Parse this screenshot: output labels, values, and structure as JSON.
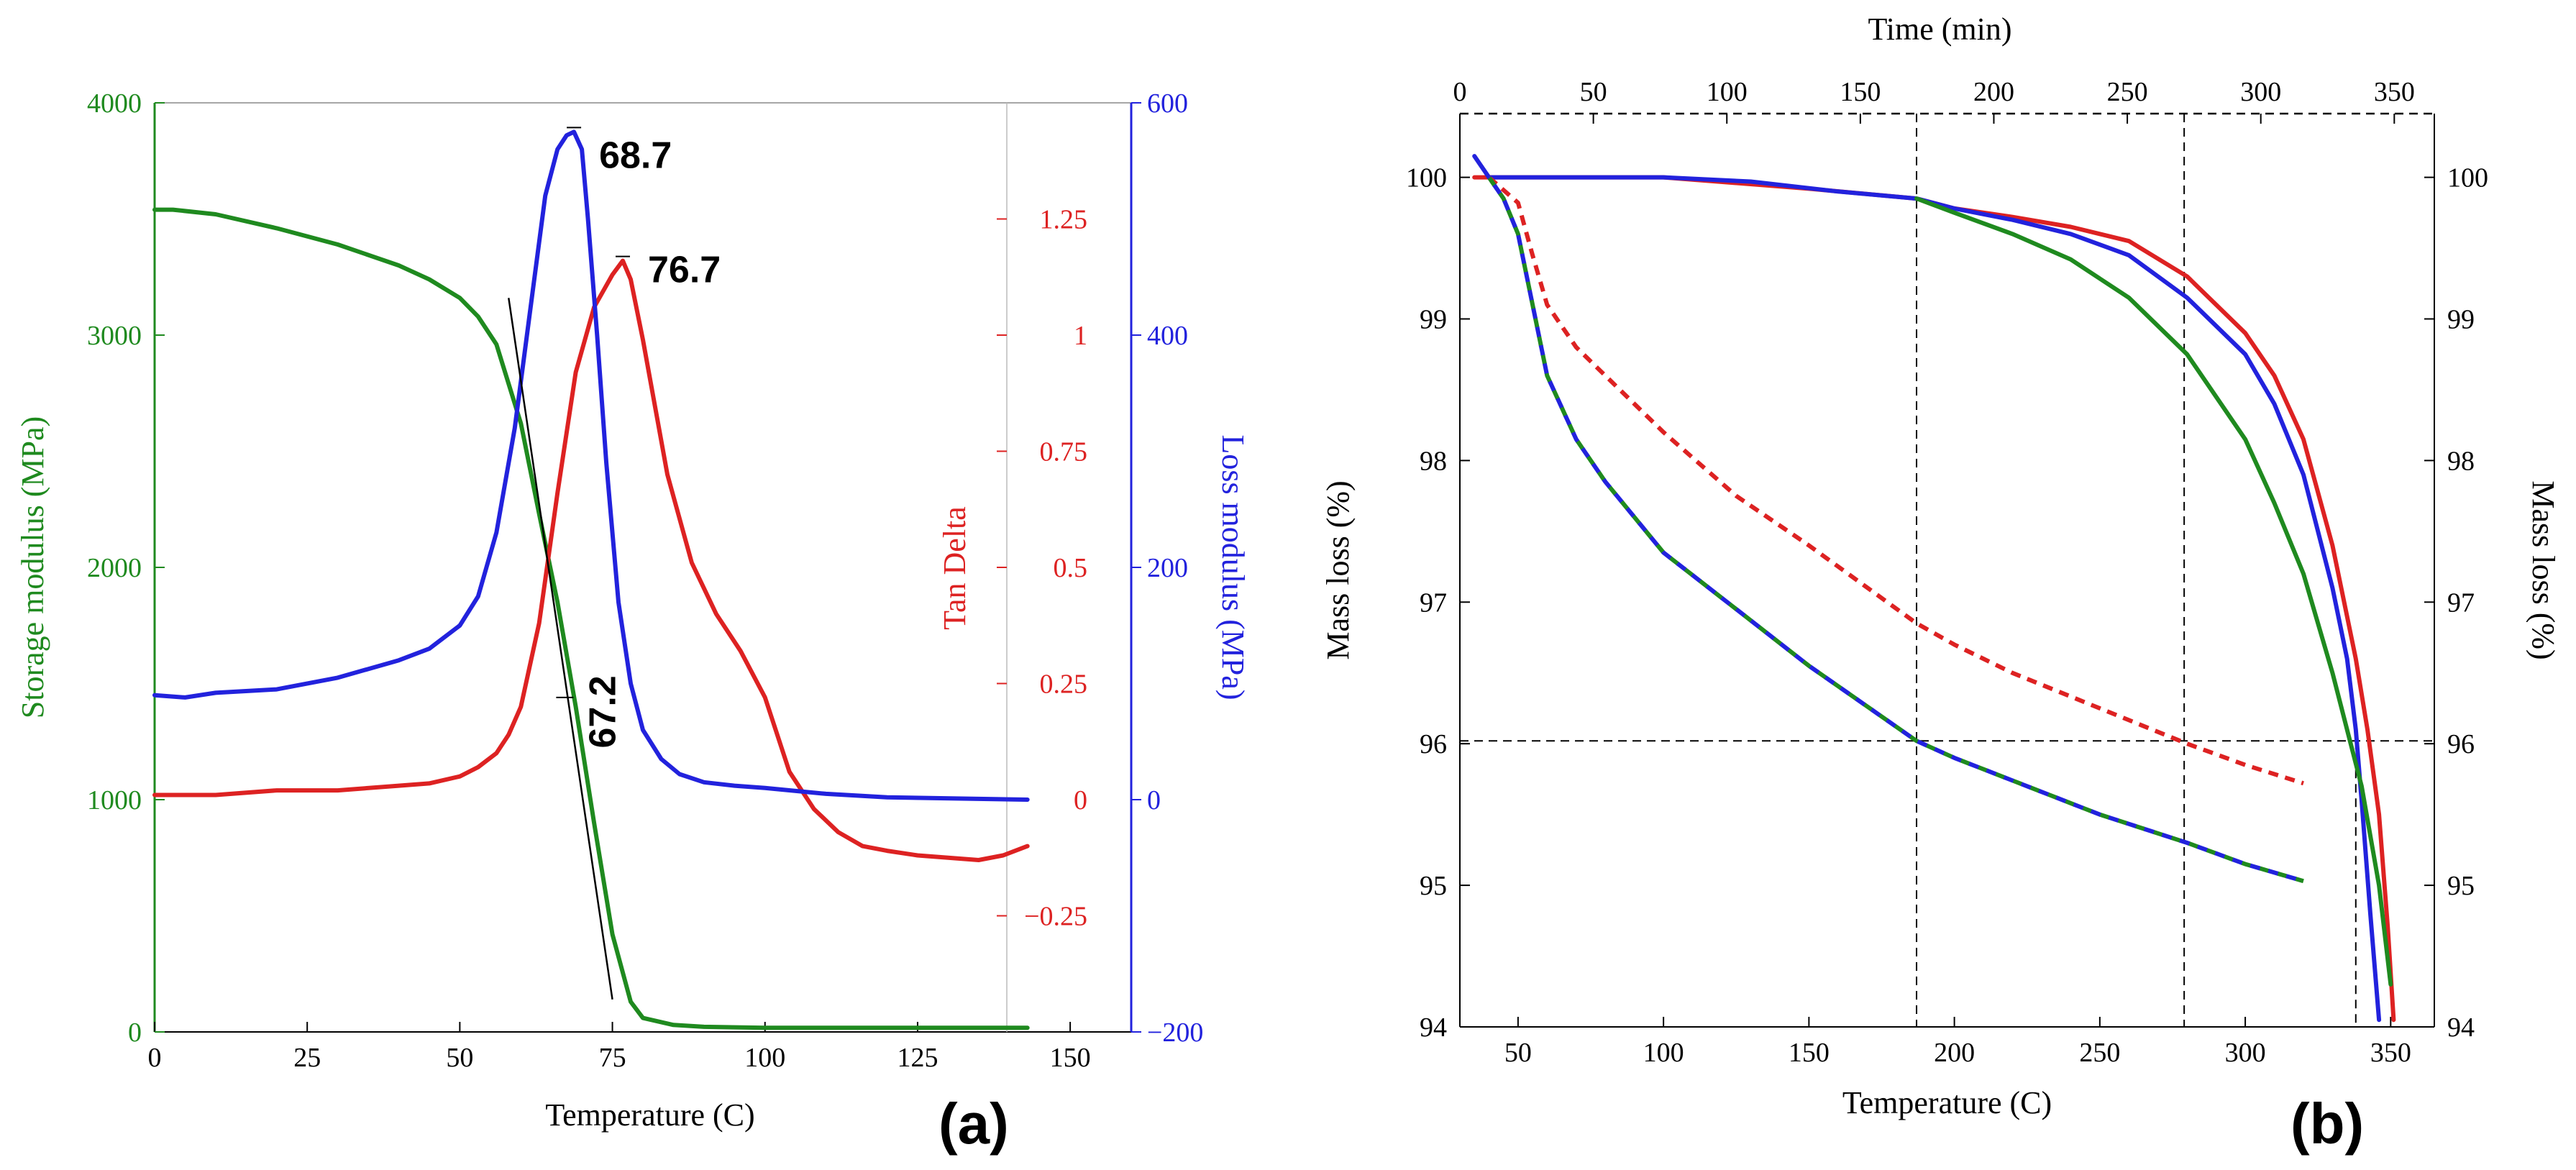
{
  "chart_data": [
    {
      "type": "line",
      "panel_label": "(a)",
      "xlabel": "Temperature (C)",
      "xlim": [
        0,
        160
      ],
      "xticks": [
        0,
        25,
        50,
        75,
        100,
        125,
        150
      ],
      "axes": {
        "storage": {
          "label": "Storage modulus (MPa)",
          "range": [
            0,
            4000
          ],
          "ticks": [
            0,
            1000,
            2000,
            3000,
            4000
          ],
          "color": "#1f8a1f"
        },
        "tan": {
          "label": "Tan Delta",
          "range": [
            -0.5,
            1.5
          ],
          "ticks": [
            -0.25,
            0,
            0.25,
            0.5,
            0.75,
            1,
            1.25
          ],
          "tick_labels": [
            "−0.25",
            "0",
            "0.25",
            "0.5",
            "0.75",
            "1",
            "1.25"
          ],
          "color": "#dd2222"
        },
        "loss": {
          "label": "Loss modulus (MPa)",
          "range": [
            -200,
            600
          ],
          "ticks": [
            -200,
            0,
            200,
            400,
            600
          ],
          "tick_labels": [
            "−200",
            "0",
            "200",
            "400",
            "600"
          ],
          "color": "#2222dd"
        }
      },
      "series": [
        {
          "axis": "storage",
          "color": "#1f8a1f",
          "x": [
            0,
            3,
            10,
            20,
            30,
            40,
            45,
            50,
            53,
            56,
            60,
            63,
            66,
            69,
            72,
            75,
            78,
            80,
            85,
            90,
            100,
            110,
            120,
            130,
            143
          ],
          "y": [
            3540,
            3540,
            3520,
            3460,
            3390,
            3300,
            3240,
            3160,
            3080,
            2960,
            2620,
            2230,
            1850,
            1400,
            900,
            420,
            130,
            60,
            30,
            22,
            18,
            18,
            18,
            18,
            18
          ]
        },
        {
          "axis": "tan",
          "color": "#dd2222",
          "x": [
            0,
            10,
            20,
            30,
            40,
            45,
            50,
            53,
            56,
            58,
            60,
            63,
            66,
            69,
            72,
            75,
            76.7,
            78,
            80,
            84,
            88,
            92,
            96,
            100,
            104,
            108,
            112,
            116,
            120,
            125,
            130,
            135,
            139,
            143
          ],
          "y": [
            0.01,
            0.01,
            0.02,
            0.02,
            0.03,
            0.035,
            0.05,
            0.07,
            0.1,
            0.14,
            0.2,
            0.38,
            0.66,
            0.92,
            1.06,
            1.13,
            1.16,
            1.12,
            0.99,
            0.7,
            0.51,
            0.4,
            0.32,
            0.22,
            0.06,
            -0.02,
            -0.07,
            -0.1,
            -0.11,
            -0.12,
            -0.125,
            -0.13,
            -0.12,
            -0.1
          ]
        },
        {
          "axis": "loss",
          "color": "#2222dd",
          "x": [
            0,
            5,
            10,
            20,
            30,
            40,
            45,
            50,
            53,
            56,
            59,
            62,
            64,
            66,
            67.5,
            68.7,
            70,
            71,
            72.5,
            74,
            76,
            78,
            80,
            83,
            86,
            90,
            95,
            100,
            110,
            120,
            143
          ],
          "y": [
            90,
            88,
            92,
            95,
            105,
            120,
            130,
            150,
            175,
            230,
            320,
            440,
            520,
            560,
            572,
            575,
            560,
            500,
            400,
            290,
            170,
            100,
            60,
            35,
            22,
            15,
            12,
            10,
            5,
            2,
            0
          ]
        }
      ],
      "tangent_line": {
        "x": [
          58,
          75
        ],
        "y": [
          3160,
          140
        ]
      },
      "annotations": [
        {
          "text": "68.7",
          "x": 68.7,
          "y": 575,
          "axis": "loss"
        },
        {
          "text": "76.7",
          "x": 76.7,
          "y": 1.16,
          "axis": "tan"
        },
        {
          "text": "67.2",
          "x": 67.2,
          "y": 1440,
          "axis": "storage"
        }
      ]
    },
    {
      "type": "line",
      "panel_label": "(b)",
      "xlabel": "Temperature (C)",
      "ylabel_left": "Mass loss (%)",
      "ylabel_right": "Mass loss (%)",
      "x2label": "Time (min)",
      "xlim": [
        30,
        365
      ],
      "xticks": [
        50,
        100,
        150,
        200,
        250,
        300,
        350
      ],
      "x2lim": [
        0,
        365
      ],
      "x2ticks": [
        0,
        50,
        100,
        150,
        200,
        250,
        300,
        350
      ],
      "ylim": [
        94,
        100.45
      ],
      "yticks": [
        94,
        95,
        96,
        97,
        98,
        99,
        100
      ],
      "series": [
        {
          "style": "solid",
          "color": "#dd2222",
          "x": [
            35,
            50,
            100,
            150,
            187,
            200,
            220,
            240,
            260,
            280,
            300,
            310,
            320,
            330,
            338,
            342,
            346,
            349,
            351
          ],
          "y": [
            100,
            100,
            100,
            99.92,
            99.85,
            99.78,
            99.72,
            99.65,
            99.55,
            99.3,
            98.9,
            98.6,
            98.15,
            97.4,
            96.6,
            96.1,
            95.5,
            94.7,
            94.05
          ]
        },
        {
          "style": "solid",
          "color": "#2222dd",
          "x": [
            35,
            40,
            50,
            100,
            130,
            160,
            187,
            200,
            220,
            240,
            260,
            280,
            300,
            310,
            320,
            330,
            335,
            338,
            340,
            343,
            346
          ],
          "y": [
            100.15,
            100,
            100,
            100,
            99.97,
            99.9,
            99.85,
            99.78,
            99.7,
            99.6,
            99.45,
            99.15,
            98.75,
            98.4,
            97.9,
            97.1,
            96.6,
            96.1,
            95.6,
            94.8,
            94.05
          ]
        },
        {
          "style": "solid",
          "color": "#1f8a1f",
          "x": [
            187,
            200,
            220,
            240,
            260,
            280,
            300,
            310,
            320,
            330,
            340,
            346,
            350
          ],
          "y": [
            99.85,
            99.75,
            99.6,
            99.42,
            99.15,
            98.75,
            98.15,
            97.7,
            97.2,
            96.5,
            95.7,
            95.0,
            94.3
          ]
        },
        {
          "style": "dashed",
          "color": "#dd2222",
          "x": [
            40,
            50,
            55,
            60,
            70,
            80,
            100,
            125,
            150,
            187,
            200,
            220,
            250,
            280,
            300,
            320
          ],
          "y": [
            100,
            99.82,
            99.45,
            99.1,
            98.8,
            98.6,
            98.2,
            97.75,
            97.4,
            96.85,
            96.7,
            96.5,
            96.25,
            96.0,
            95.85,
            95.72
          ]
        },
        {
          "style": "dashed",
          "color": "#1f8a1f",
          "color2": "#2222dd",
          "x": [
            40,
            45,
            50,
            55,
            60,
            70,
            80,
            100,
            125,
            150,
            187,
            200,
            225,
            250,
            280,
            300,
            320
          ],
          "y": [
            100,
            99.85,
            99.6,
            99.1,
            98.6,
            98.15,
            97.85,
            97.35,
            96.95,
            96.55,
            96.02,
            95.9,
            95.7,
            95.5,
            95.3,
            95.15,
            95.03
          ]
        }
      ],
      "reference_lines": {
        "horizontal_y": 96.02,
        "vertical_x": [
          187,
          279,
          338
        ]
      }
    }
  ]
}
